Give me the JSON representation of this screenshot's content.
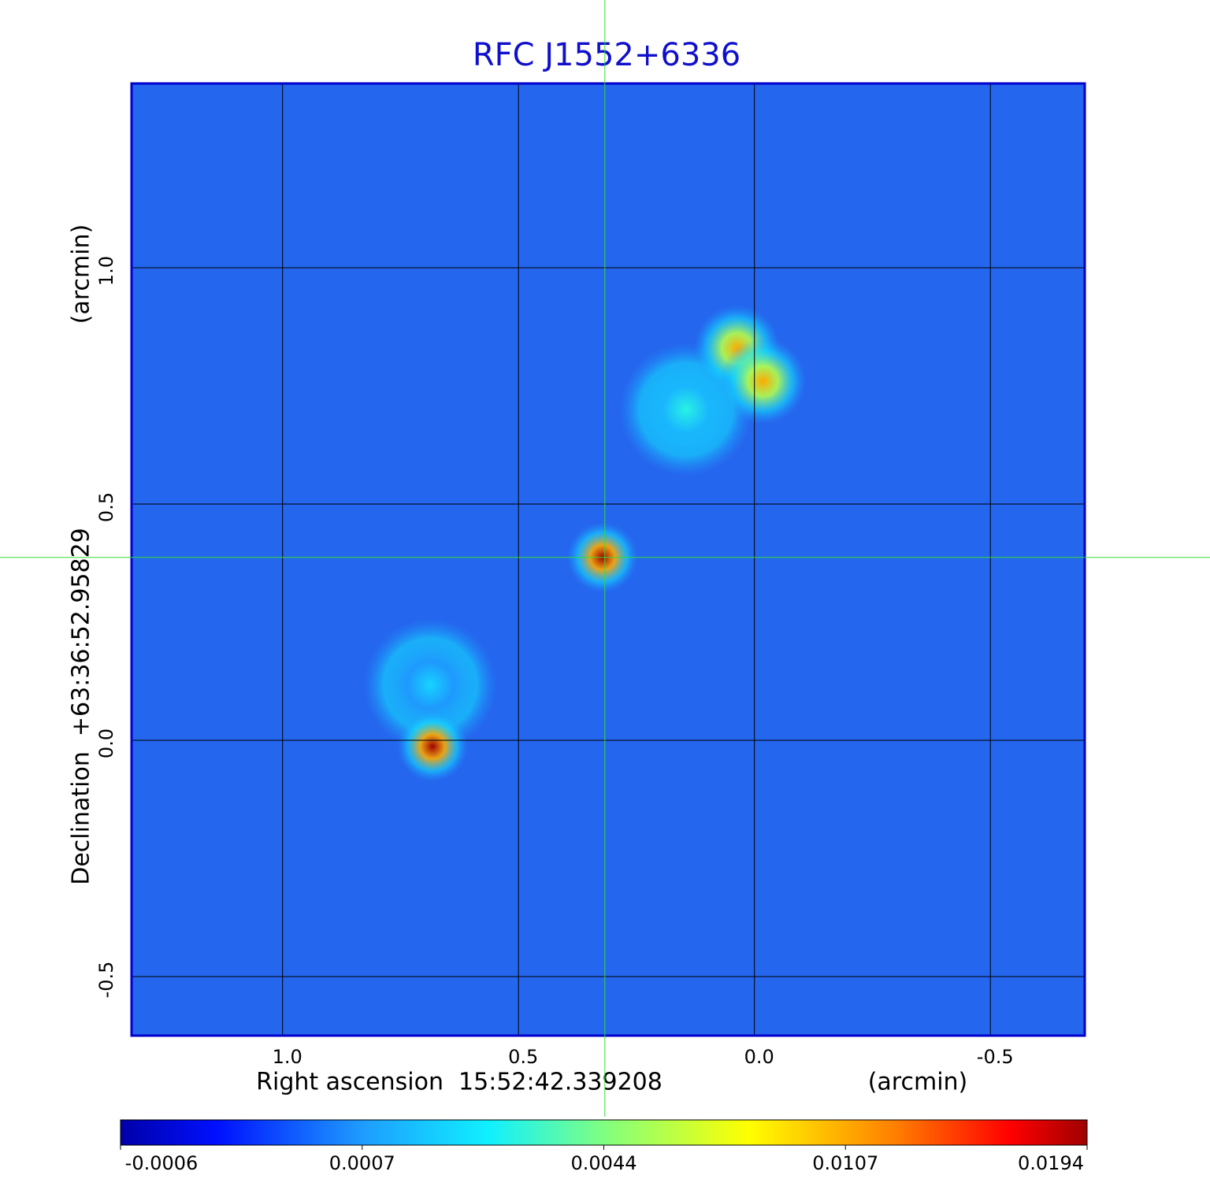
{
  "chart_data": {
    "type": "heatmap",
    "title": "RFC J1552+6336",
    "xlabel": "Right ascension  15:52:42.339208",
    "xunit": "(arcmin)",
    "ylabel": "Declination  +63:36:52.95829",
    "yunit": "(arcmin)",
    "xlim": [
      1.32,
      -0.7
    ],
    "ylim": [
      -0.625,
      1.39
    ],
    "xticks": [
      {
        "value": 1,
        "label": "1.0"
      },
      0.5,
      {
        "value": 0,
        "label": "0.0"
      },
      -0.5
    ],
    "yticks": [
      {
        "value": 1,
        "label": "1.0"
      },
      0.5,
      {
        "value": 0,
        "label": "0.0"
      },
      -0.5
    ],
    "grid": true,
    "crosshair": {
      "x": 0.317,
      "y": 0.387,
      "color": "#33dd33"
    },
    "clim": [
      -0.0006,
      0.0194
    ],
    "cticks": [
      -0.0006,
      0.0007,
      0.0044,
      0.0107,
      0.0194
    ],
    "sources": [
      {
        "x": 0.687,
        "y": 0.117,
        "peak": 0.002
      },
      {
        "x": 0.145,
        "y": 0.7,
        "peak": 0.003
      },
      {
        "x": 0.682,
        "y": -0.013,
        "peak": 0.0194
      },
      {
        "x": 0.322,
        "y": 0.387,
        "peak": 0.0194
      },
      {
        "x": 0.037,
        "y": 0.83,
        "peak": 0.0107
      },
      {
        "x": -0.018,
        "y": 0.76,
        "peak": 0.0107
      }
    ]
  }
}
